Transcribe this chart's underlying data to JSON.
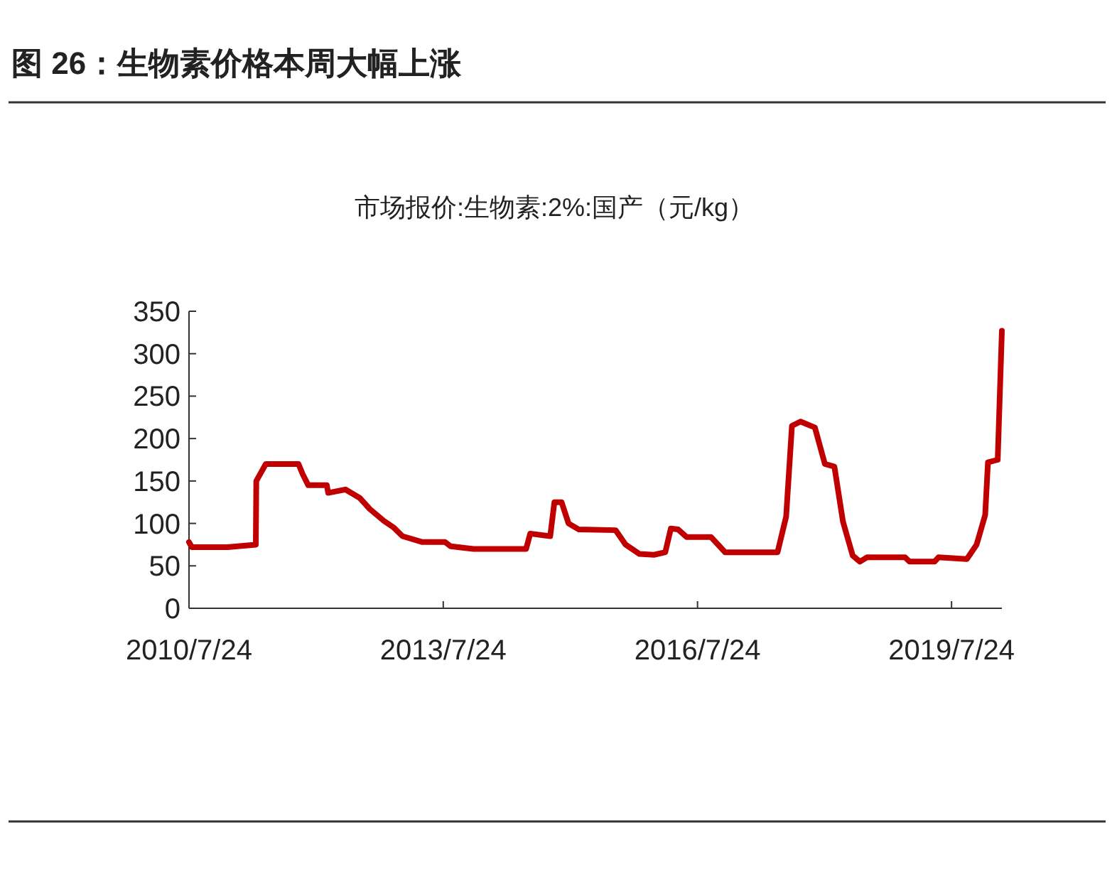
{
  "chart_data": {
    "type": "line",
    "title": "图 26：生物素价格本周大幅上涨",
    "subtitle": "市场报价:生物素:2%:国产（元/kg）",
    "x": [
      "2010-07-24",
      "2010-08-05",
      "2011-01-06",
      "2011-05-08",
      "2011-05-10",
      "2011-06-20",
      "2011-11-08",
      "2011-11-26",
      "2011-12-20",
      "2012-03-09",
      "2012-03-15",
      "2012-05-28",
      "2012-07-29",
      "2012-09-10",
      "2012-11-10",
      "2012-12-23",
      "2013-01-29",
      "2013-04-25",
      "2013-08-01",
      "2013-08-25",
      "2013-12-01",
      "2014-07-16",
      "2014-08-03",
      "2014-10-28",
      "2014-11-15",
      "2014-12-16",
      "2015-01-15",
      "2015-02-27",
      "2015-08-06",
      "2015-09-18",
      "2015-11-17",
      "2016-01-18",
      "2016-03-07",
      "2016-03-31",
      "2016-05-01",
      "2016-06-07",
      "2016-09-20",
      "2016-11-20",
      "2017-07-04",
      "2017-08-10",
      "2017-09-04",
      "2017-10-11",
      "2017-12-12",
      "2018-01-24",
      "2018-03-06",
      "2018-04-12",
      "2018-05-24",
      "2018-06-24",
      "2018-07-24",
      "2019-01-05",
      "2019-01-24",
      "2019-05-12",
      "2019-05-29",
      "2019-09-28",
      "2019-11-09",
      "2019-12-16",
      "2019-12-28",
      "2020-02-08",
      "2020-02-26"
    ],
    "series": [
      {
        "color": "#c00000",
        "values": [
          78,
          72,
          72,
          75,
          150,
          170,
          170,
          158,
          145,
          145,
          136,
          140,
          130,
          117,
          103,
          95,
          85,
          78,
          78,
          73,
          70,
          70,
          88,
          85,
          125,
          125,
          100,
          93,
          92,
          75,
          64,
          63,
          66,
          94,
          93,
          84,
          84,
          66,
          66,
          108,
          215,
          220,
          213,
          170,
          167,
          102,
          62,
          55,
          60,
          60,
          55,
          55,
          60,
          58,
          75,
          110,
          172,
          175,
          327
        ]
      }
    ],
    "xlim": [
      "2010-07-24",
      "2020-02-26"
    ],
    "xticks": [
      {
        "value": "2010-07-24",
        "label": "2010/7/24"
      },
      {
        "value": "2013-07-24",
        "label": "2013/7/24"
      },
      {
        "value": "2016-07-24",
        "label": "2016/7/24"
      },
      {
        "value": "2019-07-24",
        "label": "2019/7/24"
      }
    ],
    "ylim": [
      0,
      350
    ],
    "yticks": [
      0,
      50,
      100,
      150,
      200,
      250,
      300,
      350
    ],
    "grid": false,
    "marker": "none",
    "line_style": "solid"
  }
}
